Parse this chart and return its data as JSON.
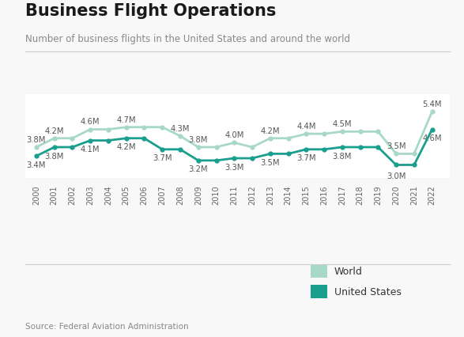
{
  "title": "Business Flight Operations",
  "subtitle": "Number of business flights in the United States and around the world",
  "source": "Source: Federal Aviation Administration",
  "years": [
    2000,
    2001,
    2002,
    2003,
    2004,
    2005,
    2006,
    2007,
    2008,
    2009,
    2010,
    2011,
    2012,
    2013,
    2014,
    2015,
    2016,
    2017,
    2018,
    2019,
    2020,
    2021,
    2022
  ],
  "world": [
    3.8,
    4.2,
    4.2,
    4.6,
    4.6,
    4.7,
    4.7,
    4.7,
    4.3,
    3.8,
    3.8,
    4.0,
    3.8,
    4.2,
    4.2,
    4.4,
    4.4,
    4.5,
    4.5,
    4.5,
    3.5,
    3.5,
    5.4
  ],
  "us": [
    3.4,
    3.8,
    3.8,
    4.1,
    4.1,
    4.2,
    4.2,
    3.7,
    3.7,
    3.2,
    3.2,
    3.3,
    3.3,
    3.5,
    3.5,
    3.7,
    3.7,
    3.8,
    3.8,
    3.8,
    3.0,
    3.0,
    4.6
  ],
  "world_labels": [
    "3.8M",
    "4.2M",
    null,
    "4.6M",
    null,
    "4.7M",
    null,
    null,
    "4.3M",
    "3.8M",
    null,
    "4.0M",
    null,
    "4.2M",
    null,
    "4.4M",
    null,
    "4.5M",
    null,
    null,
    "3.5M",
    null,
    "5.4M"
  ],
  "us_labels": [
    "3.4M",
    "3.8M",
    null,
    "4.1M",
    null,
    "4.2M",
    null,
    "3.7M",
    null,
    "3.2M",
    null,
    "3.3M",
    null,
    "3.5M",
    null,
    "3.7M",
    null,
    "3.8M",
    null,
    null,
    "3.0M",
    null,
    "4.6M"
  ],
  "world_color": "#a8d8c8",
  "us_color": "#1a9e8e",
  "background_color": "#f8f8f8",
  "plot_bg_color": "#ffffff",
  "title_fontsize": 15,
  "subtitle_fontsize": 8.5,
  "label_fontsize": 7.2,
  "legend_world": "World",
  "legend_us": "United States",
  "ylim": [
    2.4,
    6.2
  ],
  "linewidth": 2.0,
  "marker_size": 3.5
}
